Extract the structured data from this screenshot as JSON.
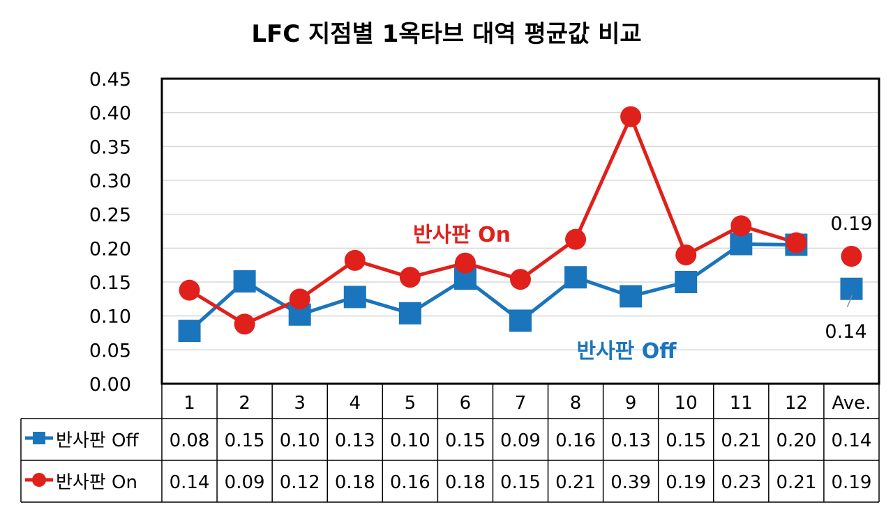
{
  "chart_data": {
    "type": "line",
    "title": "LFC 지점별 1옥타브 대역 평균값 비교",
    "categories": [
      "1",
      "2",
      "3",
      "4",
      "5",
      "6",
      "7",
      "8",
      "9",
      "10",
      "11",
      "12",
      "Ave."
    ],
    "ylim": [
      0,
      0.45
    ],
    "yticks": [
      "0.00",
      "0.05",
      "0.10",
      "0.15",
      "0.20",
      "0.25",
      "0.30",
      "0.35",
      "0.40",
      "0.45"
    ],
    "grid": true,
    "legend": "data-table",
    "series": [
      {
        "name": "반사판 Off",
        "color": "#1B75BC",
        "marker": "square",
        "values": [
          0.078,
          0.151,
          0.102,
          0.128,
          0.104,
          0.155,
          0.093,
          0.157,
          0.129,
          0.15,
          0.206,
          0.205,
          0.14
        ],
        "table_values": [
          "0.08",
          "0.15",
          "0.10",
          "0.13",
          "0.10",
          "0.15",
          "0.09",
          "0.16",
          "0.13",
          "0.15",
          "0.21",
          "0.20",
          "0.14"
        ]
      },
      {
        "name": "반사판 On",
        "color": "#E0201B",
        "marker": "circle",
        "values": [
          0.138,
          0.088,
          0.125,
          0.182,
          0.157,
          0.178,
          0.154,
          0.213,
          0.394,
          0.19,
          0.233,
          0.208,
          0.188
        ],
        "table_values": [
          "0.14",
          "0.09",
          "0.12",
          "0.18",
          "0.16",
          "0.18",
          "0.15",
          "0.21",
          "0.39",
          "0.19",
          "0.23",
          "0.21",
          "0.19"
        ]
      }
    ],
    "annotations": [
      {
        "text": "반사판 On",
        "color": "#E0201B"
      },
      {
        "text": "반사판 Off",
        "color": "#1B75BC"
      }
    ],
    "data_labels": [
      {
        "series": 1,
        "category": "Ave.",
        "text": "0.19"
      },
      {
        "series": 0,
        "category": "Ave.",
        "text": "0.14"
      }
    ]
  }
}
